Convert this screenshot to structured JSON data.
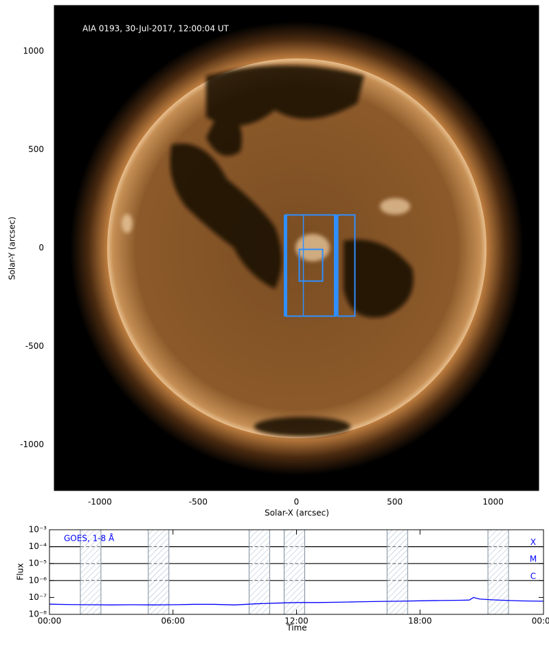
{
  "chart_data": [
    {
      "type": "image",
      "title": "AIA 0193, 30-Jul-2017, 12:00:04 UT",
      "xlabel": "Solar-X (arcsec)",
      "ylabel": "Solar-Y (arcsec)",
      "xlim": [
        -1232,
        1232
      ],
      "ylim": [
        -1232,
        1232
      ],
      "xticks": [
        -1000,
        -500,
        0,
        500,
        1000
      ],
      "yticks": [
        -1000,
        -500,
        0,
        500,
        1000
      ],
      "box_color": "#2f8fff",
      "boxes": [
        {
          "x": [
            -56,
            199
          ],
          "y": [
            -346,
            168
          ]
        },
        {
          "x": [
            210,
            297
          ],
          "y": [
            -346,
            168
          ]
        },
        {
          "x": [
            14,
            133
          ],
          "y": [
            -168,
            -7
          ]
        }
      ],
      "vlines": [
        {
          "x": 35,
          "y": [
            -346,
            168
          ]
        }
      ]
    },
    {
      "type": "line",
      "log_y": true,
      "xlabel": "Time",
      "ylabel": "Flux",
      "xlim": [
        0,
        24
      ],
      "ylim": [
        1e-08,
        0.001
      ],
      "xticks": [
        {
          "value": 0,
          "label": "00:00"
        },
        {
          "value": 6,
          "label": "06:00"
        },
        {
          "value": 12,
          "label": "12:00"
        },
        {
          "value": 18,
          "label": "18:00"
        },
        {
          "value": 24,
          "label": "00:00"
        }
      ],
      "yticks": [
        {
          "value": 1e-08,
          "label": "10⁻⁸"
        },
        {
          "value": 1e-07,
          "label": "10⁻⁷"
        },
        {
          "value": 1e-06,
          "label": "10⁻⁶"
        },
        {
          "value": 1e-05,
          "label": "10⁻⁵"
        },
        {
          "value": 0.0001,
          "label": "10⁻⁴"
        },
        {
          "value": 0.001,
          "label": "10⁻³"
        }
      ],
      "levels": [
        {
          "value": 0.0001,
          "label": "X"
        },
        {
          "value": 1e-05,
          "label": "M"
        },
        {
          "value": 1e-06,
          "label": "C"
        }
      ],
      "intervals": [
        [
          1.5,
          2.5
        ],
        [
          4.8,
          5.8
        ],
        [
          9.7,
          10.7
        ],
        [
          11.4,
          12.4
        ],
        [
          16.4,
          17.4
        ],
        [
          21.3,
          22.3
        ]
      ],
      "x": [
        0,
        1,
        2,
        3,
        4,
        5,
        6,
        7,
        8,
        9,
        10,
        11,
        12,
        13,
        14,
        15,
        16,
        17,
        18,
        19,
        20,
        20.4,
        20.6,
        20.9,
        21.5,
        22,
        23,
        24
      ],
      "series": [
        {
          "name": "GOES, 1-8 Å",
          "color": "#0000ff",
          "values": [
            4e-08,
            3.8e-08,
            3.7e-08,
            3.6e-08,
            3.7e-08,
            3.6e-08,
            3.7e-08,
            3.9e-08,
            3.9e-08,
            3.6e-08,
            4.2e-08,
            4.6e-08,
            5e-08,
            5e-08,
            5.2e-08,
            5.5e-08,
            5.8e-08,
            6e-08,
            6.3e-08,
            6.6e-08,
            6.8e-08,
            7e-08,
            1e-07,
            8e-08,
            7.2e-08,
            6.8e-08,
            6.2e-08,
            6e-08
          ]
        }
      ]
    }
  ]
}
